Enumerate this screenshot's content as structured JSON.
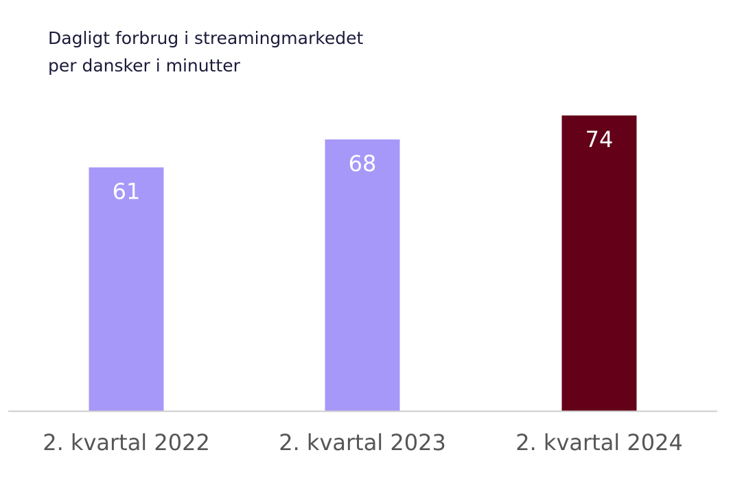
{
  "chart_data": {
    "type": "bar",
    "title": [
      "Dagligt forbrug i streamingmarkedet",
      "per dansker i minutter"
    ],
    "categories": [
      "2. kvartal 2022",
      "2. kvartal 2023",
      "2. kvartal 2024"
    ],
    "values": [
      61,
      68,
      74
    ],
    "bar_colors": [
      "#a698f8",
      "#a698f8",
      "#640018"
    ],
    "label_color": "#ffffff",
    "axis_color": "#cccccc",
    "tick_label_color": "#555555",
    "ylim": [
      0,
      74
    ],
    "grid": false,
    "data_labels": true
  }
}
